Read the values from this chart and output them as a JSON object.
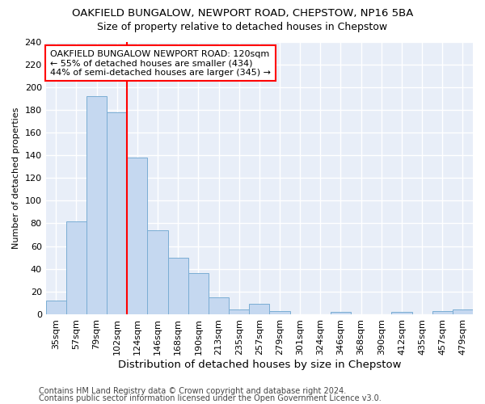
{
  "title": "OAKFIELD BUNGALOW, NEWPORT ROAD, CHEPSTOW, NP16 5BA",
  "subtitle": "Size of property relative to detached houses in Chepstow",
  "xlabel": "Distribution of detached houses by size in Chepstow",
  "ylabel": "Number of detached properties",
  "categories": [
    "35sqm",
    "57sqm",
    "79sqm",
    "102sqm",
    "124sqm",
    "146sqm",
    "168sqm",
    "190sqm",
    "213sqm",
    "235sqm",
    "257sqm",
    "279sqm",
    "301sqm",
    "324sqm",
    "346sqm",
    "368sqm",
    "390sqm",
    "412sqm",
    "435sqm",
    "457sqm",
    "479sqm"
  ],
  "values": [
    12,
    82,
    192,
    178,
    138,
    74,
    50,
    36,
    15,
    4,
    9,
    3,
    0,
    0,
    2,
    0,
    0,
    2,
    0,
    3,
    4
  ],
  "bar_color": "#c5d8f0",
  "bar_edge_color": "#7aadd4",
  "vline_color": "red",
  "vline_bar_index": 4,
  "annotation_text": "OAKFIELD BUNGALOW NEWPORT ROAD: 120sqm\n← 55% of detached houses are smaller (434)\n44% of semi-detached houses are larger (345) →",
  "annotation_box_color": "white",
  "annotation_box_edge": "red",
  "ylim": [
    0,
    240
  ],
  "yticks": [
    0,
    20,
    40,
    60,
    80,
    100,
    120,
    140,
    160,
    180,
    200,
    220,
    240
  ],
  "footer1": "Contains HM Land Registry data © Crown copyright and database right 2024.",
  "footer2": "Contains public sector information licensed under the Open Government Licence v3.0.",
  "bg_color": "#e8eef8",
  "grid_color": "white",
  "title_fontsize": 9.5,
  "subtitle_fontsize": 9,
  "xlabel_fontsize": 9.5,
  "ylabel_fontsize": 8,
  "tick_fontsize": 8,
  "annotation_fontsize": 8,
  "footer_fontsize": 7
}
